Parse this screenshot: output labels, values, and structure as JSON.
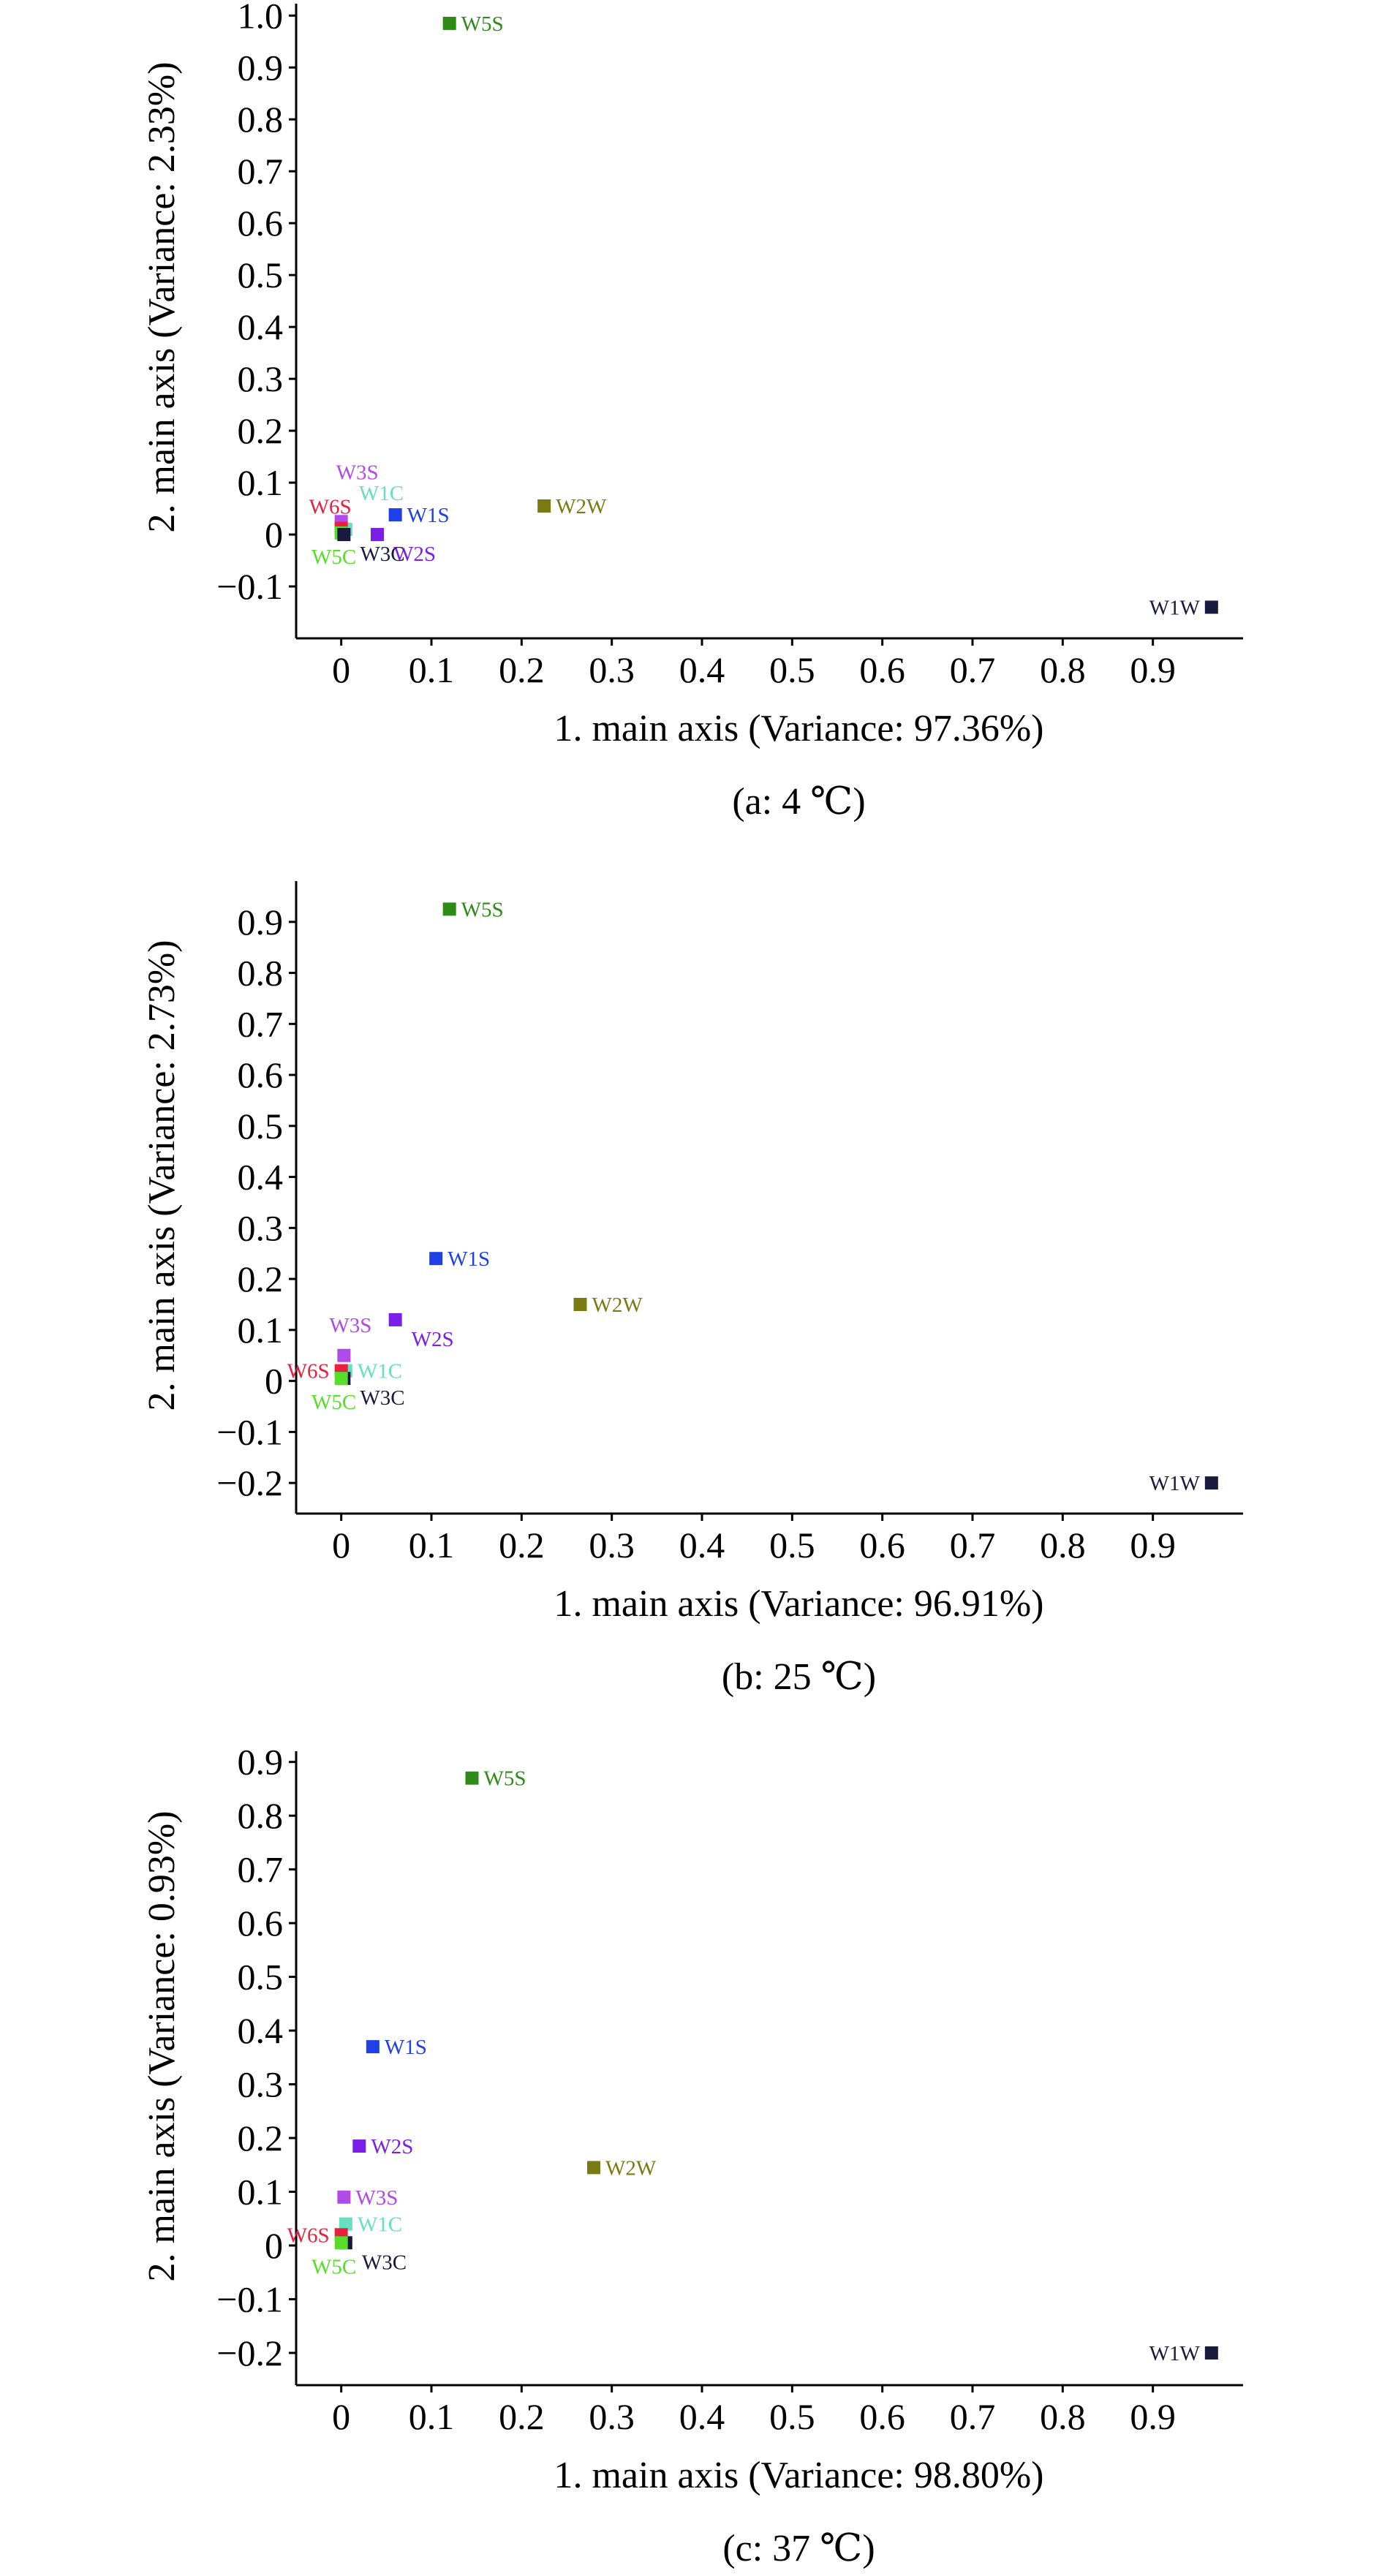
{
  "chart_data": [
    {
      "type": "scatter",
      "caption": "(a: 4 ℃)",
      "xlabel": "1. main axis (Variance: 97.36%)",
      "ylabel": "2. main axis (Variance: 2.33%)",
      "xlim": [
        -0.05,
        1.0
      ],
      "ylim": [
        -0.2,
        1.03
      ],
      "xticks": [
        0,
        0.1,
        0.2,
        0.3,
        0.4,
        0.5,
        0.6,
        0.7,
        0.8,
        0.9
      ],
      "xtick_labels": [
        "0",
        "0.1",
        "0.2",
        "0.3",
        "0.4",
        "0.5",
        "0.6",
        "0.7",
        "0.8",
        "0.9"
      ],
      "yticks": [
        -0.1,
        0,
        0.1,
        0.2,
        0.3,
        0.4,
        0.5,
        0.6,
        0.7,
        0.8,
        0.9,
        1.0
      ],
      "ytick_labels": [
        "−0.1",
        "0",
        "0.1",
        "0.2",
        "0.3",
        "0.4",
        "0.5",
        "0.6",
        "0.7",
        "0.8",
        "0.9",
        "1.0"
      ],
      "grid": false,
      "points": [
        {
          "label": "W5S",
          "x": 0.12,
          "y": 0.985,
          "color": "#2e8b17",
          "label_side": "right"
        },
        {
          "label": "W2W",
          "x": 0.225,
          "y": 0.055,
          "color": "#7a7a12",
          "label_side": "right"
        },
        {
          "label": "W1W",
          "x": 0.965,
          "y": -0.14,
          "color": "#1a1a3e",
          "label_side": "left"
        },
        {
          "label": "W1S",
          "x": 0.06,
          "y": 0.038,
          "color": "#1f3fe8",
          "label_side": "right"
        },
        {
          "label": "W2S",
          "x": 0.04,
          "y": 0.0,
          "color": "#7a1fe8",
          "label_side": "below-right"
        },
        {
          "label": "W3S",
          "x": 0.0,
          "y": 0.025,
          "color": "#b04ae8",
          "label_side": "above"
        },
        {
          "label": "W1C",
          "x": 0.005,
          "y": 0.01,
          "color": "#66e0c0",
          "label_side": "above-right"
        },
        {
          "label": "W6S",
          "x": 0.0,
          "y": 0.012,
          "color": "#e81f3f",
          "label_side": "left-above"
        },
        {
          "label": "W5C",
          "x": 0.0,
          "y": 0.003,
          "color": "#5adc2a",
          "label_side": "below"
        },
        {
          "label": "W3C",
          "x": 0.003,
          "y": 0.0,
          "color": "#1a1a3e",
          "label_side": "below-right"
        }
      ]
    },
    {
      "type": "scatter",
      "caption": "(b: 25 ℃)",
      "xlabel": "1. main axis (Variance: 96.91%)",
      "ylabel": "2. main axis (Variance: 2.73%)",
      "xlim": [
        -0.05,
        1.0
      ],
      "ylim": [
        -0.26,
        0.98
      ],
      "xticks": [
        0,
        0.1,
        0.2,
        0.3,
        0.4,
        0.5,
        0.6,
        0.7,
        0.8,
        0.9
      ],
      "xtick_labels": [
        "0",
        "0.1",
        "0.2",
        "0.3",
        "0.4",
        "0.5",
        "0.6",
        "0.7",
        "0.8",
        "0.9"
      ],
      "yticks": [
        -0.2,
        -0.1,
        0,
        0.1,
        0.2,
        0.3,
        0.4,
        0.5,
        0.6,
        0.7,
        0.8,
        0.9
      ],
      "ytick_labels": [
        "−0.2",
        "−0.1",
        "0",
        "0.1",
        "0.2",
        "0.3",
        "0.4",
        "0.5",
        "0.6",
        "0.7",
        "0.8",
        "0.9"
      ],
      "grid": false,
      "points": [
        {
          "label": "W5S",
          "x": 0.12,
          "y": 0.925,
          "color": "#2e8b17",
          "label_side": "right"
        },
        {
          "label": "W1S",
          "x": 0.105,
          "y": 0.24,
          "color": "#1f3fe8",
          "label_side": "right"
        },
        {
          "label": "W2W",
          "x": 0.265,
          "y": 0.15,
          "color": "#7a7a12",
          "label_side": "right"
        },
        {
          "label": "W2S",
          "x": 0.06,
          "y": 0.12,
          "color": "#7a1fe8",
          "label_side": "below-right"
        },
        {
          "label": "W3S",
          "x": 0.003,
          "y": 0.05,
          "color": "#b04ae8",
          "label_side": "above-left"
        },
        {
          "label": "W1C",
          "x": 0.005,
          "y": 0.02,
          "color": "#66e0c0",
          "label_side": "right"
        },
        {
          "label": "W6S",
          "x": 0.0,
          "y": 0.02,
          "color": "#e81f3f",
          "label_side": "left"
        },
        {
          "label": "W3C",
          "x": 0.003,
          "y": 0.005,
          "color": "#1a1a3e",
          "label_side": "below-right"
        },
        {
          "label": "W5C",
          "x": 0.0,
          "y": 0.005,
          "color": "#5adc2a",
          "label_side": "below"
        },
        {
          "label": "W1W",
          "x": 0.965,
          "y": -0.2,
          "color": "#1a1a3e",
          "label_side": "left"
        }
      ]
    },
    {
      "type": "scatter",
      "caption": "(c: 37 ℃)",
      "xlabel": "1. main axis (Variance: 98.80%)",
      "ylabel": "2. main axis (Variance: 0.93%)",
      "xlim": [
        -0.05,
        1.0
      ],
      "ylim": [
        -0.26,
        0.92
      ],
      "xticks": [
        0,
        0.1,
        0.2,
        0.3,
        0.4,
        0.5,
        0.6,
        0.7,
        0.8,
        0.9
      ],
      "xtick_labels": [
        "0",
        "0.1",
        "0.2",
        "0.3",
        "0.4",
        "0.5",
        "0.6",
        "0.7",
        "0.8",
        "0.9"
      ],
      "yticks": [
        -0.2,
        -0.1,
        0,
        0.1,
        0.2,
        0.3,
        0.4,
        0.5,
        0.6,
        0.7,
        0.8,
        0.9
      ],
      "ytick_labels": [
        "−0.2",
        "−0.1",
        "0",
        "0.1",
        "0.2",
        "0.3",
        "0.4",
        "0.5",
        "0.6",
        "0.7",
        "0.8",
        "0.9"
      ],
      "grid": false,
      "points": [
        {
          "label": "W5S",
          "x": 0.145,
          "y": 0.87,
          "color": "#2e8b17",
          "label_side": "right"
        },
        {
          "label": "W1S",
          "x": 0.035,
          "y": 0.37,
          "color": "#1f3fe8",
          "label_side": "right"
        },
        {
          "label": "W2S",
          "x": 0.02,
          "y": 0.185,
          "color": "#7a1fe8",
          "label_side": "right"
        },
        {
          "label": "W2W",
          "x": 0.28,
          "y": 0.145,
          "color": "#7a7a12",
          "label_side": "right"
        },
        {
          "label": "W3S",
          "x": 0.003,
          "y": 0.09,
          "color": "#b04ae8",
          "label_side": "right"
        },
        {
          "label": "W1C",
          "x": 0.005,
          "y": 0.04,
          "color": "#66e0c0",
          "label_side": "right"
        },
        {
          "label": "W6S",
          "x": 0.0,
          "y": 0.02,
          "color": "#e81f3f",
          "label_side": "left"
        },
        {
          "label": "W3C",
          "x": 0.005,
          "y": 0.005,
          "color": "#1a1a3e",
          "label_side": "below-right"
        },
        {
          "label": "W5C",
          "x": 0.0,
          "y": 0.005,
          "color": "#5adc2a",
          "label_side": "below"
        },
        {
          "label": "W1W",
          "x": 0.965,
          "y": -0.2,
          "color": "#1a1a3e",
          "label_side": "left"
        }
      ]
    }
  ]
}
